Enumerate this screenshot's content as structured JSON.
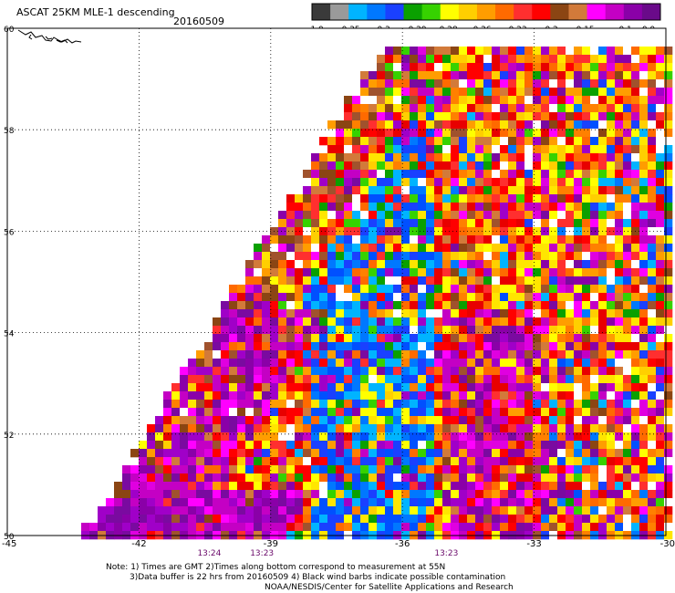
{
  "header": {
    "title": "ASCAT 25KM MLE-1 descending",
    "date": "20160509"
  },
  "colorbar": {
    "labels": [
      "-1.0",
      "-0.35",
      "-0.3",
      "-0.29",
      "-0.28",
      "-0.26",
      "-0.23",
      "-0.2",
      "-0.15",
      "-0.1",
      "0.0"
    ],
    "colors": [
      "#3a3a3a",
      "#9a9a9a",
      "#00b4ff",
      "#0078ff",
      "#1a40ff",
      "#0aa000",
      "#36d200",
      "#ffff00",
      "#ffcf00",
      "#ff9d00",
      "#ff6a00",
      "#ff2f2f",
      "#ff0000",
      "#8b4513",
      "#d27a3a",
      "#ff00ff",
      "#c400c4",
      "#8a00a8",
      "#6a0a8a"
    ]
  },
  "map": {
    "lat_labels": [
      "60",
      "58",
      "56",
      "54",
      "52",
      "50"
    ],
    "lon_labels": [
      "-45",
      "-42",
      "-39",
      "-36",
      "-33",
      "-30"
    ],
    "times": [
      {
        "label": "13:24",
        "lon": -40.4
      },
      {
        "label": "13:23",
        "lon": -39.2
      },
      {
        "label": "13:23",
        "lon": -35.0
      }
    ]
  },
  "notes": {
    "line1": "Note: 1) Times are GMT 2)Times along bottom correspond to measurement at 55N",
    "line2": "3)Data buffer is 22 hrs from 20160509 4) Black wind barbs indicate possible contamination",
    "line3": "NOAA/NESDIS/Center for Satellite Applications and Research"
  }
}
